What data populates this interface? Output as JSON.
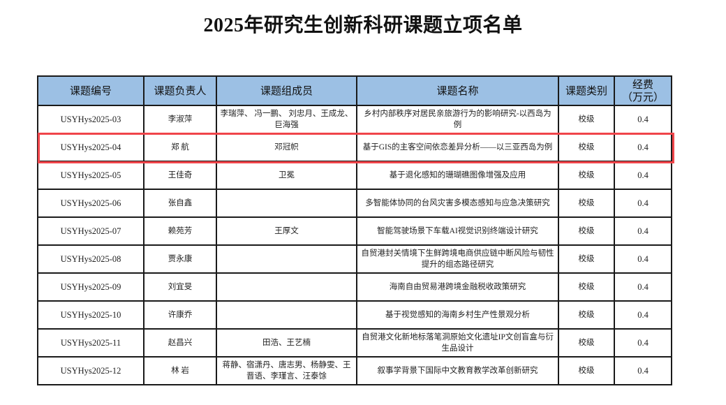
{
  "title": "2025年研究生创新科研课题立项名单",
  "headers": [
    "课题编号",
    "课题负责人",
    "课题组成员",
    "课题名称",
    "课题类别",
    "经费\n（万元）"
  ],
  "headers_fee_line1": "经费",
  "headers_fee_line2": "（万元）",
  "highlight_color": "#f0454a",
  "header_color": "#9cc0e4",
  "rows": [
    {
      "code": "USYHys2025-03",
      "leader": "李淑萍",
      "members": "李瑞萍、 冯一鹏、 刘忠月、王成龙、 巨海强",
      "name": "乡村内部秩序对居民亲旅游行为的影响研究-以西岛为例",
      "category": "校级",
      "fee": "0.4"
    },
    {
      "code": "USYHys2025-04",
      "leader": "郑 航",
      "members": "邓冠帜",
      "name": "基于GIS的主客空间依恋差异分析——以三亚西岛为例",
      "category": "校级",
      "fee": "0.4",
      "highlighted": true
    },
    {
      "code": "USYHys2025-05",
      "leader": "王佳奇",
      "members": "卫冕",
      "name": "基于退化感知的珊瑚礁图像增强及应用",
      "category": "校级",
      "fee": "0.4"
    },
    {
      "code": "USYHys2025-06",
      "leader": "张自鑫",
      "members": "",
      "name": "多智能体协同的台风灾害多模态感知与应急决策研究",
      "category": "校级",
      "fee": "0.4"
    },
    {
      "code": "USYHys2025-07",
      "leader": "赖苑芳",
      "members": "王厚文",
      "name": "智能驾驶场景下车载AI视觉识别终端设计研究",
      "category": "校级",
      "fee": "0.4"
    },
    {
      "code": "USYHys2025-08",
      "leader": "贾永康",
      "members": "",
      "name": "自贸港封关情境下生鲜跨境电商供应链中断风险与韧性提升的组态路径研究",
      "category": "校级",
      "fee": "0.4"
    },
    {
      "code": "USYHys2025-09",
      "leader": "刘宜旻",
      "members": "",
      "name": "海南自由贸易港跨境金融税收政策研究",
      "category": "校级",
      "fee": "0.4"
    },
    {
      "code": "USYHys2025-10",
      "leader": "许康乔",
      "members": "",
      "name": "基于视觉感知的海南乡村生产性景观分析",
      "category": "校级",
      "fee": "0.4"
    },
    {
      "code": "USYHys2025-11",
      "leader": "赵昌兴",
      "members": "田浩、王艺楠",
      "name": "自贸港文化新地标落笔洞原始文化遗址IP文创盲盒与衍生品设计",
      "category": "校级",
      "fee": "0.4"
    },
    {
      "code": "USYHys2025-12",
      "leader": "林 岩",
      "members": "蒋静、宿潇丹、唐志男、杨静雯、王晋语、李瑾言、汪泰馀",
      "name": "叙事学背景下国际中文教育教学改革创新研究",
      "category": "校级",
      "fee": "0.4"
    }
  ]
}
